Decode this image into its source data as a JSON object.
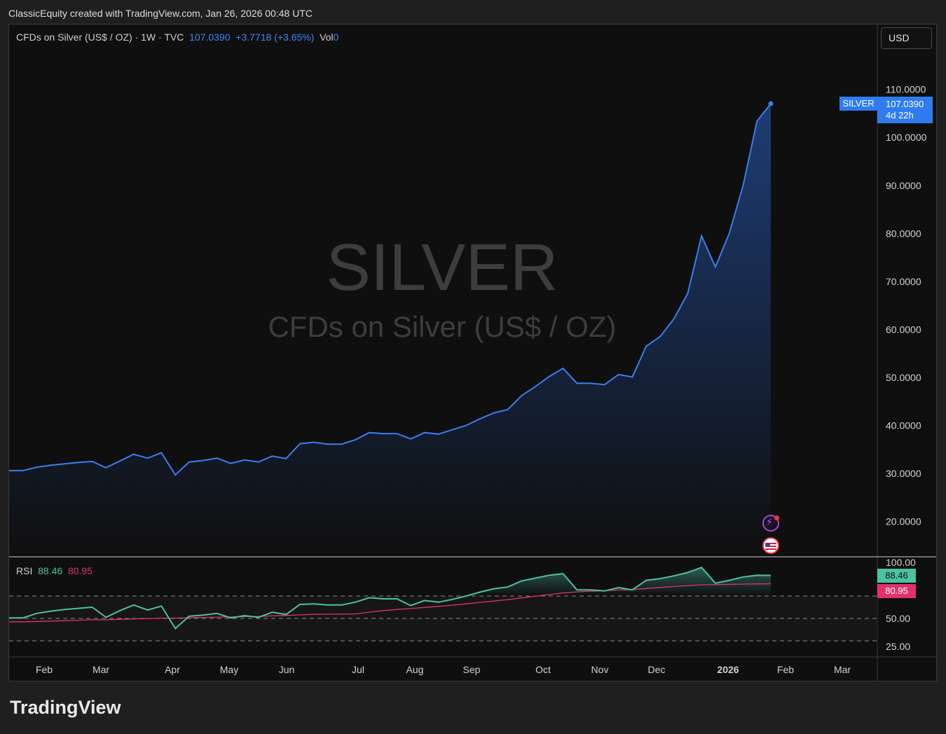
{
  "credit": "ClassicEquity created with TradingView.com, Jan 26, 2026 00:48 UTC",
  "header": {
    "title": "CFDs on Silver (US$ / OZ) · 1W · TVC",
    "last": "107.0390",
    "change": "+3.7718 (+3.65%)",
    "vol_label": "Vol",
    "vol_value": "0"
  },
  "currency": "USD",
  "watermark": {
    "symbol": "SILVER",
    "name": "CFDs on Silver (US$ / OZ)"
  },
  "price_tag": {
    "symbol": "SILVER",
    "price": "107.0390",
    "countdown": "4d 22h"
  },
  "rsi_header": {
    "label": "RSI",
    "value": "88.46",
    "ma": "80.95"
  },
  "rsi_tags": {
    "value": "88.46",
    "ma": "80.95"
  },
  "brand": "TradingView",
  "colors": {
    "price_line": "#3b7ded",
    "rsi_line": "#4cc1a6",
    "rsi_ma": "#e2326d",
    "background": "#0f0f0f"
  },
  "icons": [
    "flash-icon",
    "us-flag-icon"
  ],
  "chart_data": [
    {
      "type": "line",
      "series": [
        {
          "values": [
            30.6,
            30.6,
            31.3,
            31.7,
            32.0,
            32.3,
            32.5,
            31.2,
            32.6,
            34.0,
            33.2,
            34.3,
            29.7,
            32.4,
            32.7,
            33.2,
            32.1,
            32.8,
            32.4,
            33.6,
            33.1,
            36.2,
            36.5,
            36.1,
            36.1,
            37.0,
            38.5,
            38.3,
            38.3,
            37.2,
            38.5,
            38.2,
            39.1,
            40.0,
            41.4,
            42.6,
            43.3,
            46.2,
            48.1,
            50.2,
            51.9,
            48.8,
            48.8,
            48.5,
            50.6,
            50.1,
            56.5,
            58.5,
            62.2,
            67.5,
            79.5,
            73.0,
            80.0,
            90.0,
            103.4,
            107.039
          ]
        }
      ],
      "x_tick_labels": [
        "Feb",
        "Mar",
        "Apr",
        "May",
        "Jun",
        "Jul",
        "Aug",
        "Sep",
        "Oct",
        "Nov",
        "Dec",
        "2026",
        "Feb",
        "Mar"
      ],
      "y_tick_labels": [
        "110.0000",
        "100.0000",
        "90.0000",
        "80.0000",
        "70.0000",
        "60.0000",
        "50.0000",
        "40.0000",
        "30.0000",
        "20.0000"
      ],
      "ylim": [
        14,
        120
      ]
    },
    {
      "type": "line",
      "series": [
        {
          "values": [
            50.5,
            50.5,
            54.5,
            56.5,
            58.0,
            59.0,
            60.0,
            51.0,
            57.0,
            62.0,
            57.5,
            61.0,
            41.0,
            52.0,
            53.0,
            54.5,
            50.5,
            52.5,
            51.0,
            55.5,
            53.5,
            62.5,
            63.0,
            62.0,
            62.0,
            64.5,
            68.5,
            67.5,
            67.5,
            61.5,
            66.0,
            64.5,
            67.0,
            70.0,
            73.5,
            76.5,
            78.0,
            83.5,
            86.0,
            88.5,
            90.0,
            75.5,
            75.5,
            74.5,
            77.5,
            75.5,
            84.0,
            85.5,
            88.0,
            91.0,
            95.5,
            81.5,
            84.0,
            87.0,
            88.5,
            88.46
          ]
        },
        {
          "values": [
            47.0,
            47.0,
            47.3,
            47.6,
            48.0,
            48.4,
            48.8,
            48.8,
            49.2,
            49.6,
            49.8,
            50.3,
            50.3,
            50.6,
            50.9,
            51.2,
            51.3,
            51.6,
            51.8,
            52.3,
            52.6,
            53.2,
            53.6,
            53.8,
            53.8,
            54.0,
            55.6,
            57.0,
            58.0,
            58.8,
            59.8,
            60.8,
            61.8,
            63.0,
            64.3,
            65.5,
            66.8,
            68.3,
            69.8,
            71.3,
            72.7,
            73.7,
            74.3,
            74.8,
            75.4,
            75.8,
            76.7,
            77.6,
            78.5,
            79.3,
            80.0,
            80.2,
            80.4,
            80.6,
            80.8,
            80.95
          ]
        }
      ],
      "y_tick_labels": [
        "100.00",
        "50.00",
        "25.00"
      ],
      "ylim": [
        18,
        104
      ]
    }
  ]
}
